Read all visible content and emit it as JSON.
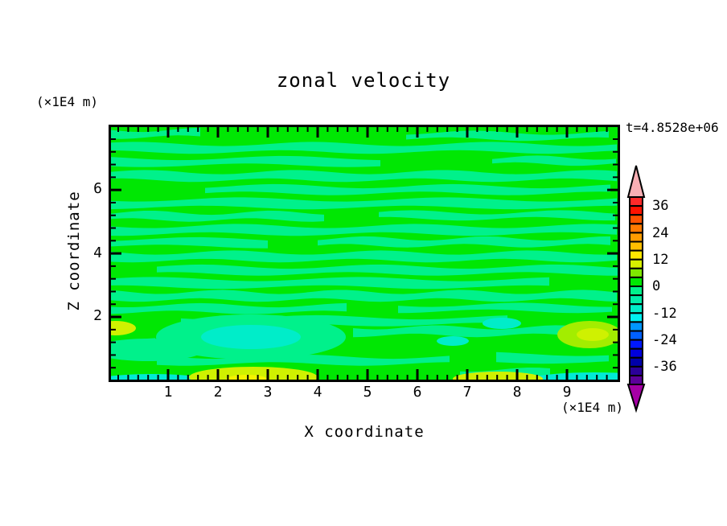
{
  "title": "zonal velocity",
  "timestamp": "t=4.8528e+06",
  "axes": {
    "ylabel": "Z coordinate",
    "xlabel": "X coordinate",
    "y_unit_label": "(×1E4 m)",
    "x_unit_label": "(×1E4 m)",
    "y_tick_labels": [
      "6",
      "4",
      "2"
    ],
    "x_tick_labels": [
      "1",
      "2",
      "3",
      "4",
      "5",
      "6",
      "7",
      "8",
      "9"
    ]
  },
  "chart_data": {
    "type": "filled_contour",
    "title": "zonal velocity",
    "timestamp": "t=4.8528e+06",
    "xlabel": "X coordinate",
    "x_unit": "(×1E4 m)",
    "ylabel": "Z coordinate",
    "y_unit": "(×1E4 m)",
    "x_range": [
      0,
      10
    ],
    "y_range": [
      0,
      8
    ],
    "x_ticks": [
      1,
      2,
      3,
      4,
      5,
      6,
      7,
      8,
      9
    ],
    "y_ticks": [
      2,
      4,
      6
    ],
    "x_minor_step": 0.2,
    "y_minor_step": 0.4,
    "contour_interval": 4,
    "level_top": 40,
    "level_bottom": -44,
    "colorbar": {
      "labels": [
        "36",
        "24",
        "12",
        "0",
        "-12",
        "-24",
        "-36"
      ],
      "colors_top_to_bottom": [
        "#FF2A2A",
        "#FF1200",
        "#FF5200",
        "#FF7A00",
        "#FF9C00",
        "#FFBE00",
        "#FFE800",
        "#D8F000",
        "#7FE800",
        "#00E703",
        "#00F18B",
        "#00EDA9",
        "#00EDC9",
        "#00F0F0",
        "#0096FF",
        "#0060FF",
        "#0018FF",
        "#0000DC",
        "#0000AA",
        "#2B0099",
        "#5C0099"
      ],
      "over_color": "#F9AFB4",
      "under_color": "#A500A5"
    },
    "palette": {
      "green": "#00E703",
      "spring": "#00F18B",
      "turquoise": "#00EDC9",
      "cyan": "#00EBD6",
      "chartreuse": "#CFF101",
      "yellow": "#F4F400",
      "yellow_green": "#A3ED00"
    },
    "field": {
      "background": "green",
      "band_color": "spring",
      "bands": [
        [
          9,
          9,
          0,
          112
        ],
        [
          12,
          8,
          368,
          632
        ],
        [
          27,
          10,
          0,
          632
        ],
        [
          44,
          9,
          0,
          345
        ],
        [
          43,
          8,
          475,
          632
        ],
        [
          62,
          10,
          0,
          632
        ],
        [
          79,
          9,
          118,
          632
        ],
        [
          96,
          10,
          0,
          632
        ],
        [
          112,
          9,
          0,
          272
        ],
        [
          111,
          8,
          334,
          632
        ],
        [
          129,
          10,
          0,
          632
        ],
        [
          145,
          9,
          0,
          198
        ],
        [
          144,
          9,
          258,
          632
        ],
        [
          162,
          10,
          0,
          632
        ],
        [
          179,
          9,
          58,
          632
        ],
        [
          195,
          10,
          0,
          558
        ],
        [
          211,
          10,
          0,
          632
        ],
        [
          227,
          9,
          0,
          298
        ],
        [
          226,
          8,
          358,
          632
        ],
        [
          242,
          9,
          88,
          498
        ],
        [
          255,
          10,
          302,
          632
        ],
        [
          270,
          9,
          0,
          62
        ],
        [
          291,
          9,
          58,
          432
        ],
        [
          288,
          10,
          480,
          632
        ],
        [
          307,
          9,
          435,
          560
        ]
      ],
      "features": [
        {
          "shape": "ellipse",
          "cx": 175,
          "cy": 262,
          "rx": 118,
          "ry": 28,
          "color": "spring"
        },
        {
          "shape": "ellipse",
          "cx": 47,
          "cy": 278,
          "rx": 70,
          "ry": 14,
          "color": "spring"
        },
        {
          "shape": "ellipse",
          "cx": 175,
          "cy": 262,
          "rx": 62,
          "ry": 15,
          "color": "turquoise"
        },
        {
          "shape": "ellipse",
          "cx": 487,
          "cy": 245,
          "rx": 24,
          "ry": 7,
          "color": "turquoise"
        },
        {
          "shape": "ellipse",
          "cx": 426,
          "cy": 267,
          "rx": 20,
          "ry": 6,
          "color": "turquoise"
        },
        {
          "shape": "ellipse",
          "cx": 6,
          "cy": 251,
          "rx": 26,
          "ry": 9,
          "color": "chartreuse"
        },
        {
          "shape": "ellipse",
          "cx": 596,
          "cy": 259,
          "rx": 40,
          "ry": 17,
          "color": "yellow_green"
        },
        {
          "shape": "ellipse",
          "cx": 600,
          "cy": 259,
          "rx": 20,
          "ry": 8,
          "color": "chartreuse"
        },
        {
          "shape": "ellipse",
          "cx": 52,
          "cy": 319,
          "rx": 80,
          "ry": 11,
          "color": "cyan"
        },
        {
          "shape": "ellipse",
          "cx": 602,
          "cy": 318,
          "rx": 90,
          "ry": 12,
          "color": "cyan"
        },
        {
          "shape": "ellipse",
          "cx": 178,
          "cy": 312,
          "rx": 80,
          "ry": 13,
          "color": "chartreuse"
        },
        {
          "shape": "ellipse",
          "cx": 170,
          "cy": 315,
          "rx": 26,
          "ry": 6,
          "color": "yellow"
        },
        {
          "shape": "ellipse",
          "cx": 482,
          "cy": 314,
          "rx": 56,
          "ry": 9,
          "color": "chartreuse"
        }
      ]
    }
  }
}
